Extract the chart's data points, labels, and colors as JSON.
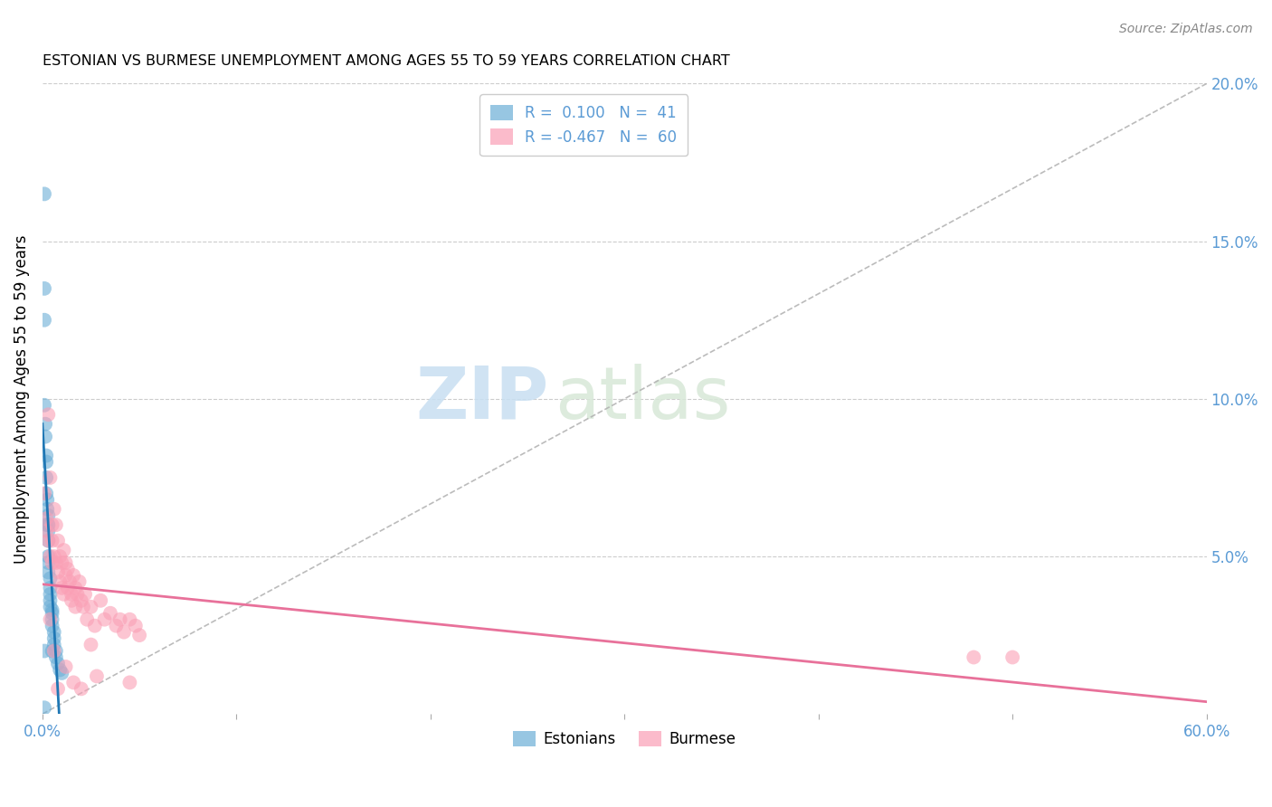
{
  "title": "ESTONIAN VS BURMESE UNEMPLOYMENT AMONG AGES 55 TO 59 YEARS CORRELATION CHART",
  "source": "Source: ZipAtlas.com",
  "ylabel": "Unemployment Among Ages 55 to 59 years",
  "xlim": [
    0,
    0.6
  ],
  "ylim": [
    0,
    0.2
  ],
  "watermark_zip": "ZIP",
  "watermark_atlas": "atlas",
  "estonian_color": "#6baed6",
  "burmese_color": "#fa9fb5",
  "trend_blue": "#1f77b4",
  "trend_pink": "#e8719a",
  "axis_color": "#5b9bd5",
  "grid_color": "#cccccc",
  "estonian_x": [
    0.001,
    0.001,
    0.001,
    0.001,
    0.001,
    0.0015,
    0.0015,
    0.002,
    0.002,
    0.002,
    0.002,
    0.002,
    0.0025,
    0.0025,
    0.003,
    0.003,
    0.003,
    0.003,
    0.003,
    0.003,
    0.003,
    0.004,
    0.004,
    0.004,
    0.004,
    0.004,
    0.005,
    0.005,
    0.005,
    0.005,
    0.006,
    0.006,
    0.006,
    0.007,
    0.007,
    0.008,
    0.009,
    0.01,
    0.001,
    0.003,
    0.005
  ],
  "estonian_y": [
    0.165,
    0.135,
    0.125,
    0.098,
    0.002,
    0.092,
    0.088,
    0.082,
    0.08,
    0.075,
    0.07,
    0.06,
    0.068,
    0.065,
    0.063,
    0.06,
    0.058,
    0.055,
    0.05,
    0.048,
    0.045,
    0.043,
    0.04,
    0.038,
    0.036,
    0.034,
    0.033,
    0.032,
    0.03,
    0.028,
    0.026,
    0.024,
    0.022,
    0.02,
    0.018,
    0.016,
    0.014,
    0.013,
    0.02,
    0.06,
    0.02
  ],
  "burmese_x": [
    0.001,
    0.002,
    0.002,
    0.003,
    0.003,
    0.004,
    0.004,
    0.005,
    0.005,
    0.005,
    0.006,
    0.006,
    0.007,
    0.007,
    0.008,
    0.008,
    0.009,
    0.009,
    0.01,
    0.01,
    0.011,
    0.011,
    0.012,
    0.012,
    0.013,
    0.013,
    0.014,
    0.015,
    0.015,
    0.016,
    0.017,
    0.017,
    0.018,
    0.019,
    0.02,
    0.021,
    0.022,
    0.023,
    0.025,
    0.027,
    0.03,
    0.032,
    0.035,
    0.038,
    0.04,
    0.042,
    0.045,
    0.048,
    0.05,
    0.5,
    0.004,
    0.006,
    0.008,
    0.012,
    0.016,
    0.02,
    0.028,
    0.025,
    0.045,
    0.48
  ],
  "burmese_y": [
    0.07,
    0.062,
    0.058,
    0.095,
    0.055,
    0.075,
    0.05,
    0.06,
    0.055,
    0.048,
    0.065,
    0.05,
    0.06,
    0.048,
    0.055,
    0.045,
    0.05,
    0.042,
    0.048,
    0.04,
    0.052,
    0.038,
    0.048,
    0.044,
    0.046,
    0.04,
    0.042,
    0.038,
    0.036,
    0.044,
    0.04,
    0.034,
    0.038,
    0.042,
    0.036,
    0.034,
    0.038,
    0.03,
    0.034,
    0.028,
    0.036,
    0.03,
    0.032,
    0.028,
    0.03,
    0.026,
    0.03,
    0.028,
    0.025,
    0.018,
    0.03,
    0.02,
    0.008,
    0.015,
    0.01,
    0.008,
    0.012,
    0.022,
    0.01,
    0.018
  ]
}
